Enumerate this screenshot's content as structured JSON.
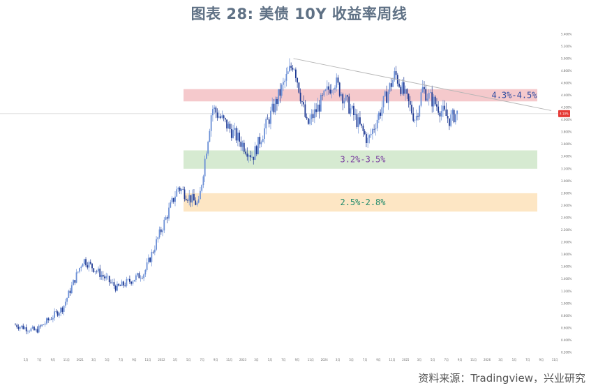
{
  "title": "图表 28: 美债 10Y 收益率周线",
  "source": "资料来源：Tradingview，兴业研究",
  "colors": {
    "up": "#6b8fd6",
    "down": "#1f3a93",
    "grid_line": "#d9d9d9",
    "trend_line": "#b5b5b5",
    "zone_red": "#f5c9cc",
    "zone_green": "#d6ead1",
    "zone_orange": "#fde6c4",
    "label_blue": "#2c4aa0",
    "label_purple": "#7a3fa0",
    "label_green": "#1f8a6a",
    "price_tag": "#e53935",
    "title": "#5f7185"
  },
  "chart_data": {
    "type": "candlestick",
    "title": "图表 28: 美债 10Y 收益率周线",
    "ylim": [
      0.2,
      5.5
    ],
    "y_tick_labels": [
      "0.200%",
      "0.400%",
      "0.600%",
      "0.800%",
      "1.000%",
      "1.200%",
      "1.400%",
      "1.600%",
      "1.800%",
      "2.000%",
      "2.200%",
      "2.400%",
      "2.600%",
      "2.800%",
      "3.000%",
      "3.200%",
      "3.400%",
      "3.600%",
      "3.800%",
      "4.000%",
      "4.200%",
      "4.400%",
      "4.600%",
      "4.800%",
      "5.000%",
      "5.200%",
      "5.400%"
    ],
    "x_tick_labels": [
      "5月",
      "7月",
      "9月",
      "11月",
      "2021",
      "3月",
      "5月",
      "7月",
      "9月",
      "11月",
      "2022",
      "3月",
      "5月",
      "7月",
      "9月",
      "11月",
      "2023",
      "3月",
      "5月",
      "7月",
      "9月",
      "11月",
      "2024",
      "3月",
      "5月",
      "7月",
      "9月",
      "11月",
      "2025",
      "3月",
      "5月",
      "7月",
      "9月",
      "11月",
      "2026",
      "3月",
      "5月",
      "7月",
      "9月",
      "11月"
    ],
    "x_range": [
      "2020-05",
      "2026-12"
    ],
    "current_price": 4.1,
    "current_price_label": "4.10%",
    "zones": [
      {
        "label": "4.3%-4.5%",
        "low": 4.3,
        "high": 4.5,
        "color": "zone_red",
        "label_color": "label_blue"
      },
      {
        "label": "3.2%-3.5%",
        "low": 3.2,
        "high": 3.5,
        "color": "zone_green",
        "label_color": "label_purple"
      },
      {
        "label": "2.5%-2.8%",
        "low": 2.5,
        "high": 2.8,
        "color": "zone_orange",
        "label_color": "label_green"
      }
    ],
    "trend_line": {
      "start": {
        "date": "2023-10",
        "value": 5.0
      },
      "end": {
        "date": "2026-12",
        "value": 4.15
      }
    },
    "key_points": [
      {
        "date": "2020-05",
        "close": 0.65
      },
      {
        "date": "2020-08",
        "close": 0.55
      },
      {
        "date": "2020-12",
        "close": 0.93
      },
      {
        "date": "2021-03",
        "close": 1.72
      },
      {
        "date": "2021-08",
        "close": 1.25
      },
      {
        "date": "2021-12",
        "close": 1.5
      },
      {
        "date": "2022-05",
        "close": 2.9
      },
      {
        "date": "2022-08",
        "close": 2.6
      },
      {
        "date": "2022-10",
        "close": 4.2
      },
      {
        "date": "2023-04",
        "close": 3.4
      },
      {
        "date": "2023-10",
        "close": 4.95
      },
      {
        "date": "2023-12",
        "close": 3.9
      },
      {
        "date": "2024-04",
        "close": 4.65
      },
      {
        "date": "2024-09",
        "close": 3.65
      },
      {
        "date": "2025-01",
        "close": 4.75
      },
      {
        "date": "2025-04",
        "close": 4.0
      },
      {
        "date": "2025-05",
        "close": 4.5
      },
      {
        "date": "2025-09",
        "close": 4.0
      },
      {
        "date": "2025-10",
        "close": 4.1
      }
    ]
  }
}
